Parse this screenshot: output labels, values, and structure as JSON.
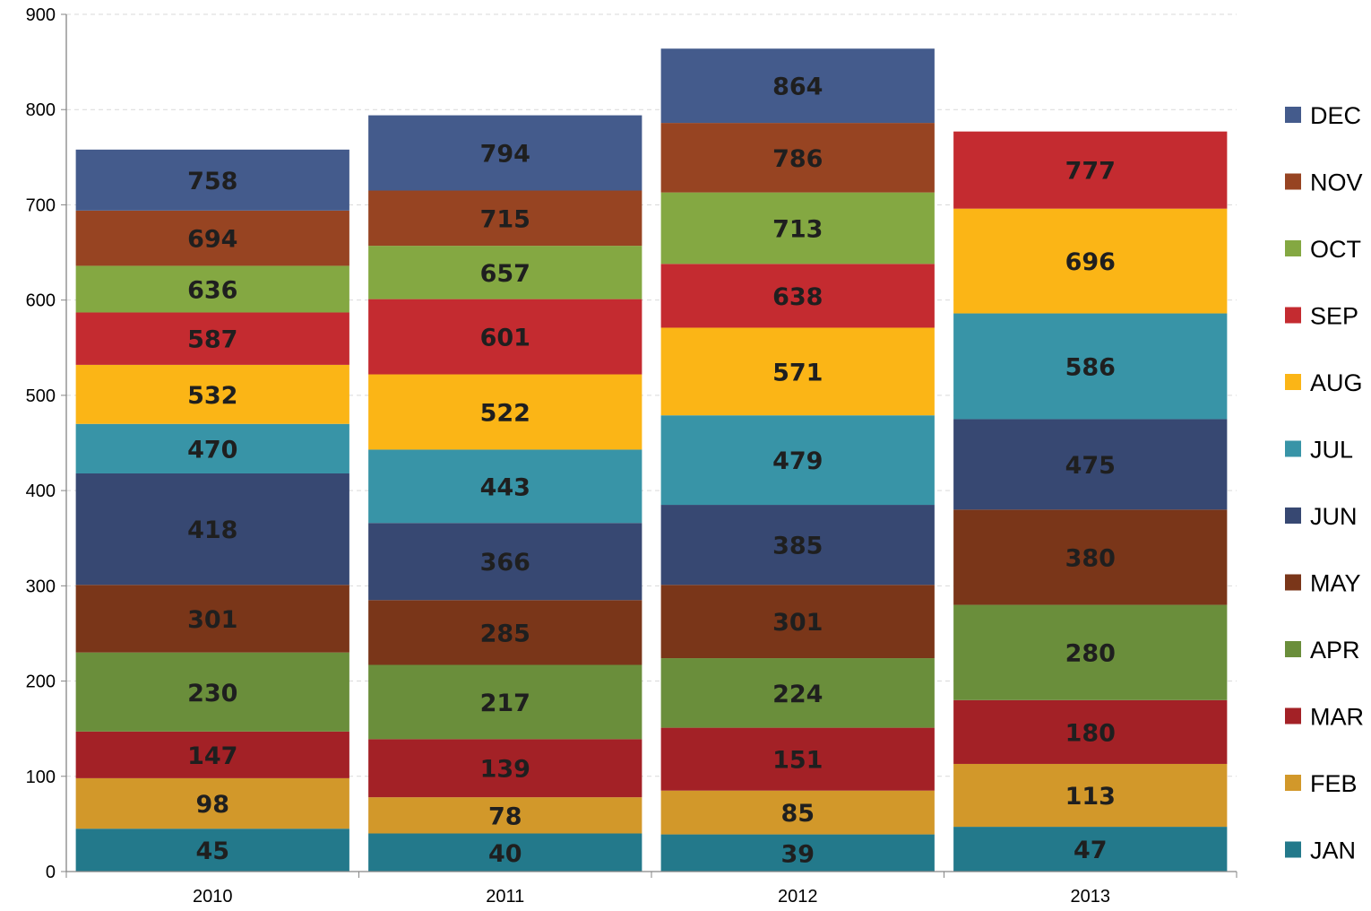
{
  "chart_data": {
    "type": "bar",
    "stacked": true,
    "title": "",
    "xlabel": "",
    "ylabel": "",
    "categories": [
      "2010",
      "2011",
      "2012",
      "2013"
    ],
    "ylim": [
      0,
      900
    ],
    "yticks": [
      0,
      100,
      200,
      300,
      400,
      500,
      600,
      700,
      800,
      900
    ],
    "grid": "horizontal dashed",
    "legend_position": "right",
    "series": [
      {
        "name": "JAN",
        "color": "#23798B",
        "cumulative_labels": [
          45,
          40,
          39,
          47
        ]
      },
      {
        "name": "FEB",
        "color": "#D2982A",
        "cumulative_labels": [
          98,
          78,
          85,
          113
        ]
      },
      {
        "name": "MAR",
        "color": "#A32126",
        "cumulative_labels": [
          147,
          139,
          151,
          180
        ]
      },
      {
        "name": "APR",
        "color": "#6A8E3B",
        "cumulative_labels": [
          230,
          217,
          224,
          280
        ]
      },
      {
        "name": "MAY",
        "color": "#7A3619",
        "cumulative_labels": [
          301,
          285,
          301,
          380
        ]
      },
      {
        "name": "JUN",
        "color": "#374872",
        "cumulative_labels": [
          418,
          366,
          385,
          475
        ]
      },
      {
        "name": "JUL",
        "color": "#3894A7",
        "cumulative_labels": [
          470,
          443,
          479,
          586
        ]
      },
      {
        "name": "AUG",
        "color": "#FBB516",
        "cumulative_labels": [
          532,
          522,
          571,
          696
        ]
      },
      {
        "name": "SEP",
        "color": "#C42B30",
        "cumulative_labels": [
          587,
          601,
          638,
          777
        ]
      },
      {
        "name": "OCT",
        "color": "#84A842",
        "cumulative_labels": [
          636,
          657,
          713,
          null
        ]
      },
      {
        "name": "NOV",
        "color": "#974422",
        "cumulative_labels": [
          694,
          715,
          786,
          null
        ]
      },
      {
        "name": "DEC",
        "color": "#445B8C",
        "cumulative_labels": [
          758,
          794,
          864,
          null
        ]
      }
    ]
  }
}
